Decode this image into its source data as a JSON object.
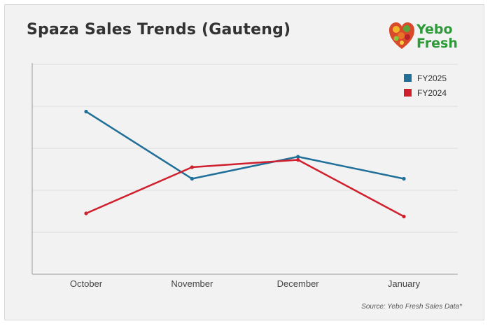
{
  "chart_data": {
    "type": "line",
    "title": "Spaza Sales Trends (Gauteng)",
    "categories": [
      "October",
      "November",
      "December",
      "January"
    ],
    "series": [
      {
        "name": "FY2025",
        "color": "#1f6f99",
        "values": [
          77.5,
          45.5,
          56,
          45.5
        ]
      },
      {
        "name": "FY2024",
        "color": "#d0202e",
        "values": [
          29,
          51,
          54.5,
          27.5
        ]
      }
    ],
    "ylim": [
      0,
      100
    ],
    "grid": true,
    "legend": "top-right",
    "source": "Source: Yebo Fresh Sales Data*"
  },
  "logo": {
    "line1": "Yebo",
    "line2": "Fresh",
    "icon": "fruit-heart-icon"
  },
  "colors": {
    "background": "#f2f2f2",
    "grid": "#dcdcdc",
    "axis": "#999999",
    "logo_green": "#2f9a3a"
  }
}
